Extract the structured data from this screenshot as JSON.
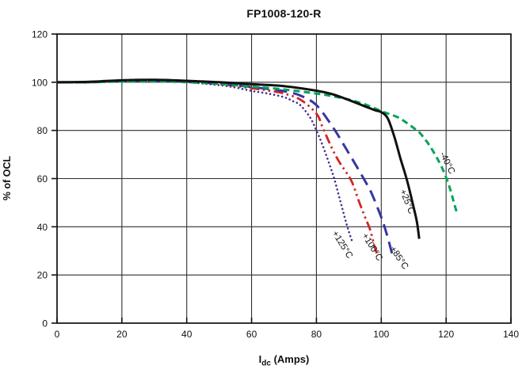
{
  "chart_data": {
    "type": "line",
    "title": "FP1008-120-R",
    "ylabel": "% of OCL",
    "xlabel_symbol": "I",
    "xlabel_subscript": "dc",
    "xlabel_units": " (Amps)",
    "xlim": [
      0,
      140
    ],
    "ylim": [
      0,
      120
    ],
    "xticks": [
      0,
      20,
      40,
      60,
      80,
      100,
      120,
      140
    ],
    "yticks": [
      0,
      20,
      40,
      60,
      80,
      100,
      120
    ],
    "grid": true,
    "legend_position": "labels-on-curves",
    "colors": {
      "frame": "#111111",
      "grid": "#2e2e2e",
      "text": "#111111"
    },
    "series": [
      {
        "name": "plus-125C",
        "label": "+125°C",
        "color": "#4A2E8F",
        "line_style": "dotted",
        "dash": "0.1 5",
        "width": 2.6,
        "cap": "round",
        "x": [
          0,
          10,
          20,
          30,
          40,
          50,
          55,
          60,
          65,
          70,
          73,
          75,
          78,
          80,
          82,
          84,
          85.5,
          87,
          88,
          89,
          90,
          91
        ],
        "y": [
          100,
          100,
          100.4,
          100.5,
          100,
          98.8,
          97.8,
          96.4,
          95.3,
          93.8,
          92,
          90.5,
          85.5,
          80,
          73.5,
          66,
          60,
          52.5,
          47.5,
          42.5,
          38,
          34
        ],
        "label_at": [
          87.3,
          32
        ],
        "label_rot": 58
      },
      {
        "name": "plus-100C",
        "label": "+100°C",
        "color": "#D22525",
        "line_style": "dash-dot-dot",
        "dash": "12 4.5 2.5 4.5 2.5 4.5",
        "width": 2.8,
        "cap": "butt",
        "x": [
          0,
          10,
          20,
          30,
          40,
          50,
          60,
          65,
          70,
          75,
          80,
          82,
          85,
          87,
          89,
          91,
          93,
          95,
          96.5,
          98,
          98.6
        ],
        "y": [
          100,
          100,
          100.8,
          101,
          100.4,
          99.3,
          97.5,
          96.6,
          95.3,
          92.8,
          87,
          81,
          72,
          67,
          63,
          58.5,
          51,
          44,
          39,
          31.5,
          29
        ],
        "label_at": [
          96.5,
          31
        ],
        "label_rot": 58
      },
      {
        "name": "plus-85C",
        "label": "+85°C",
        "color": "#3437A2",
        "line_style": "long-dash",
        "dash": "15 8",
        "width": 3,
        "cap": "butt",
        "x": [
          0,
          10,
          20,
          30,
          40,
          50,
          60,
          65,
          70,
          75,
          80,
          85,
          88,
          90,
          92,
          95,
          97,
          100,
          101,
          102,
          103.5
        ],
        "y": [
          100,
          100,
          100.4,
          100.5,
          100.2,
          99.4,
          98,
          97.2,
          96.3,
          94.5,
          90.5,
          81.5,
          75,
          70.5,
          66,
          59,
          54,
          44,
          40,
          35.5,
          28
        ],
        "label_at": [
          104.8,
          26.5
        ],
        "label_rot": 56
      },
      {
        "name": "minus-40C",
        "label": "-40°C",
        "color": "#00A455",
        "line_style": "dashed",
        "dash": "8 5",
        "width": 3,
        "cap": "butt",
        "x": [
          0,
          10,
          20,
          30,
          40,
          50,
          60,
          70,
          80,
          85,
          90,
          95,
          100,
          105,
          108,
          110,
          112,
          115,
          118,
          120,
          121.5,
          122.5,
          123.3
        ],
        "y": [
          100,
          100,
          100.3,
          100.4,
          100,
          99.3,
          98.2,
          97,
          95.3,
          94.2,
          92.8,
          90.8,
          88,
          85.5,
          83,
          81,
          78.8,
          73.5,
          66.5,
          60.5,
          54.5,
          49.5,
          46
        ],
        "label_at": [
          119.6,
          66
        ],
        "label_rot": 64
      },
      {
        "name": "plus-25C",
        "label": "+25°C",
        "color": "#111111",
        "line_style": "solid",
        "dash": "",
        "width": 3,
        "cap": "butt",
        "x": [
          0,
          10,
          20,
          30,
          40,
          50,
          60,
          70,
          80,
          85,
          90,
          95,
          98,
          100,
          102,
          104,
          106,
          108,
          110,
          111,
          111.7
        ],
        "y": [
          100,
          100.2,
          100.8,
          101,
          100.6,
          100,
          99.2,
          98.4,
          96.5,
          95,
          92.6,
          90,
          88.4,
          87.6,
          85,
          77.5,
          68,
          59,
          48,
          42,
          35
        ],
        "label_at": [
          107.2,
          50
        ],
        "label_rot": 68
      }
    ]
  }
}
